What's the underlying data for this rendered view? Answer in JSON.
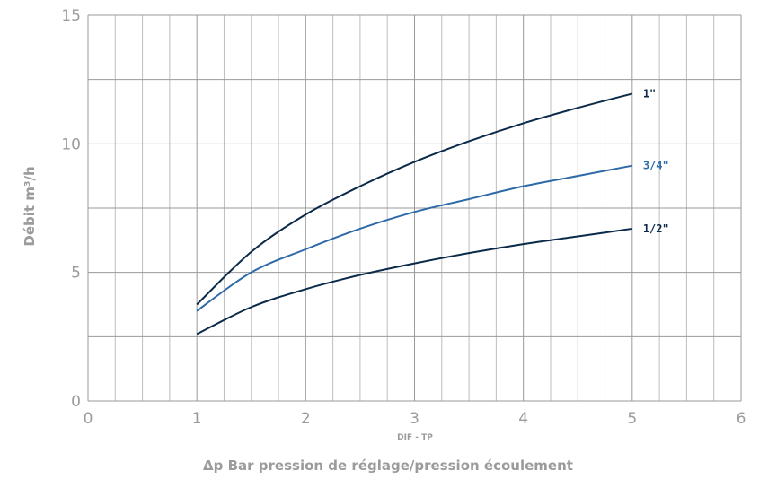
{
  "chart_data": {
    "type": "line",
    "title": "",
    "xlabel": "Δp Bar pression de réglage/pression écoulement",
    "ylabel": "Débit m³/h",
    "annotation": "DIF - TP",
    "xlim": [
      0,
      6
    ],
    "ylim": [
      0,
      15
    ],
    "x_ticks": [
      "0",
      "1",
      "2",
      "3",
      "4",
      "5",
      "6"
    ],
    "y_ticks": [
      "0",
      "5",
      "10",
      "15"
    ],
    "grid": true,
    "legend": "labels at line ends",
    "series": [
      {
        "name": "1\"",
        "color": "#0b2a4a",
        "x": [
          1.0,
          1.5,
          2.0,
          2.5,
          3.0,
          3.5,
          4.0,
          4.5,
          5.0
        ],
        "y": [
          3.75,
          5.8,
          7.25,
          8.35,
          9.3,
          10.1,
          10.8,
          11.4,
          11.95
        ]
      },
      {
        "name": "3/4\"",
        "color": "#2e6aa8",
        "x": [
          1.0,
          1.5,
          2.0,
          2.5,
          3.0,
          3.5,
          4.0,
          4.5,
          5.0
        ],
        "y": [
          3.5,
          5.0,
          5.9,
          6.7,
          7.35,
          7.85,
          8.35,
          8.75,
          9.15
        ]
      },
      {
        "name": "1/2\"",
        "color": "#0b2a4a",
        "x": [
          1.0,
          1.5,
          2.0,
          2.5,
          3.0,
          3.5,
          4.0,
          4.5,
          5.0
        ],
        "y": [
          2.6,
          3.65,
          4.35,
          4.9,
          5.35,
          5.75,
          6.1,
          6.4,
          6.7
        ]
      }
    ]
  }
}
